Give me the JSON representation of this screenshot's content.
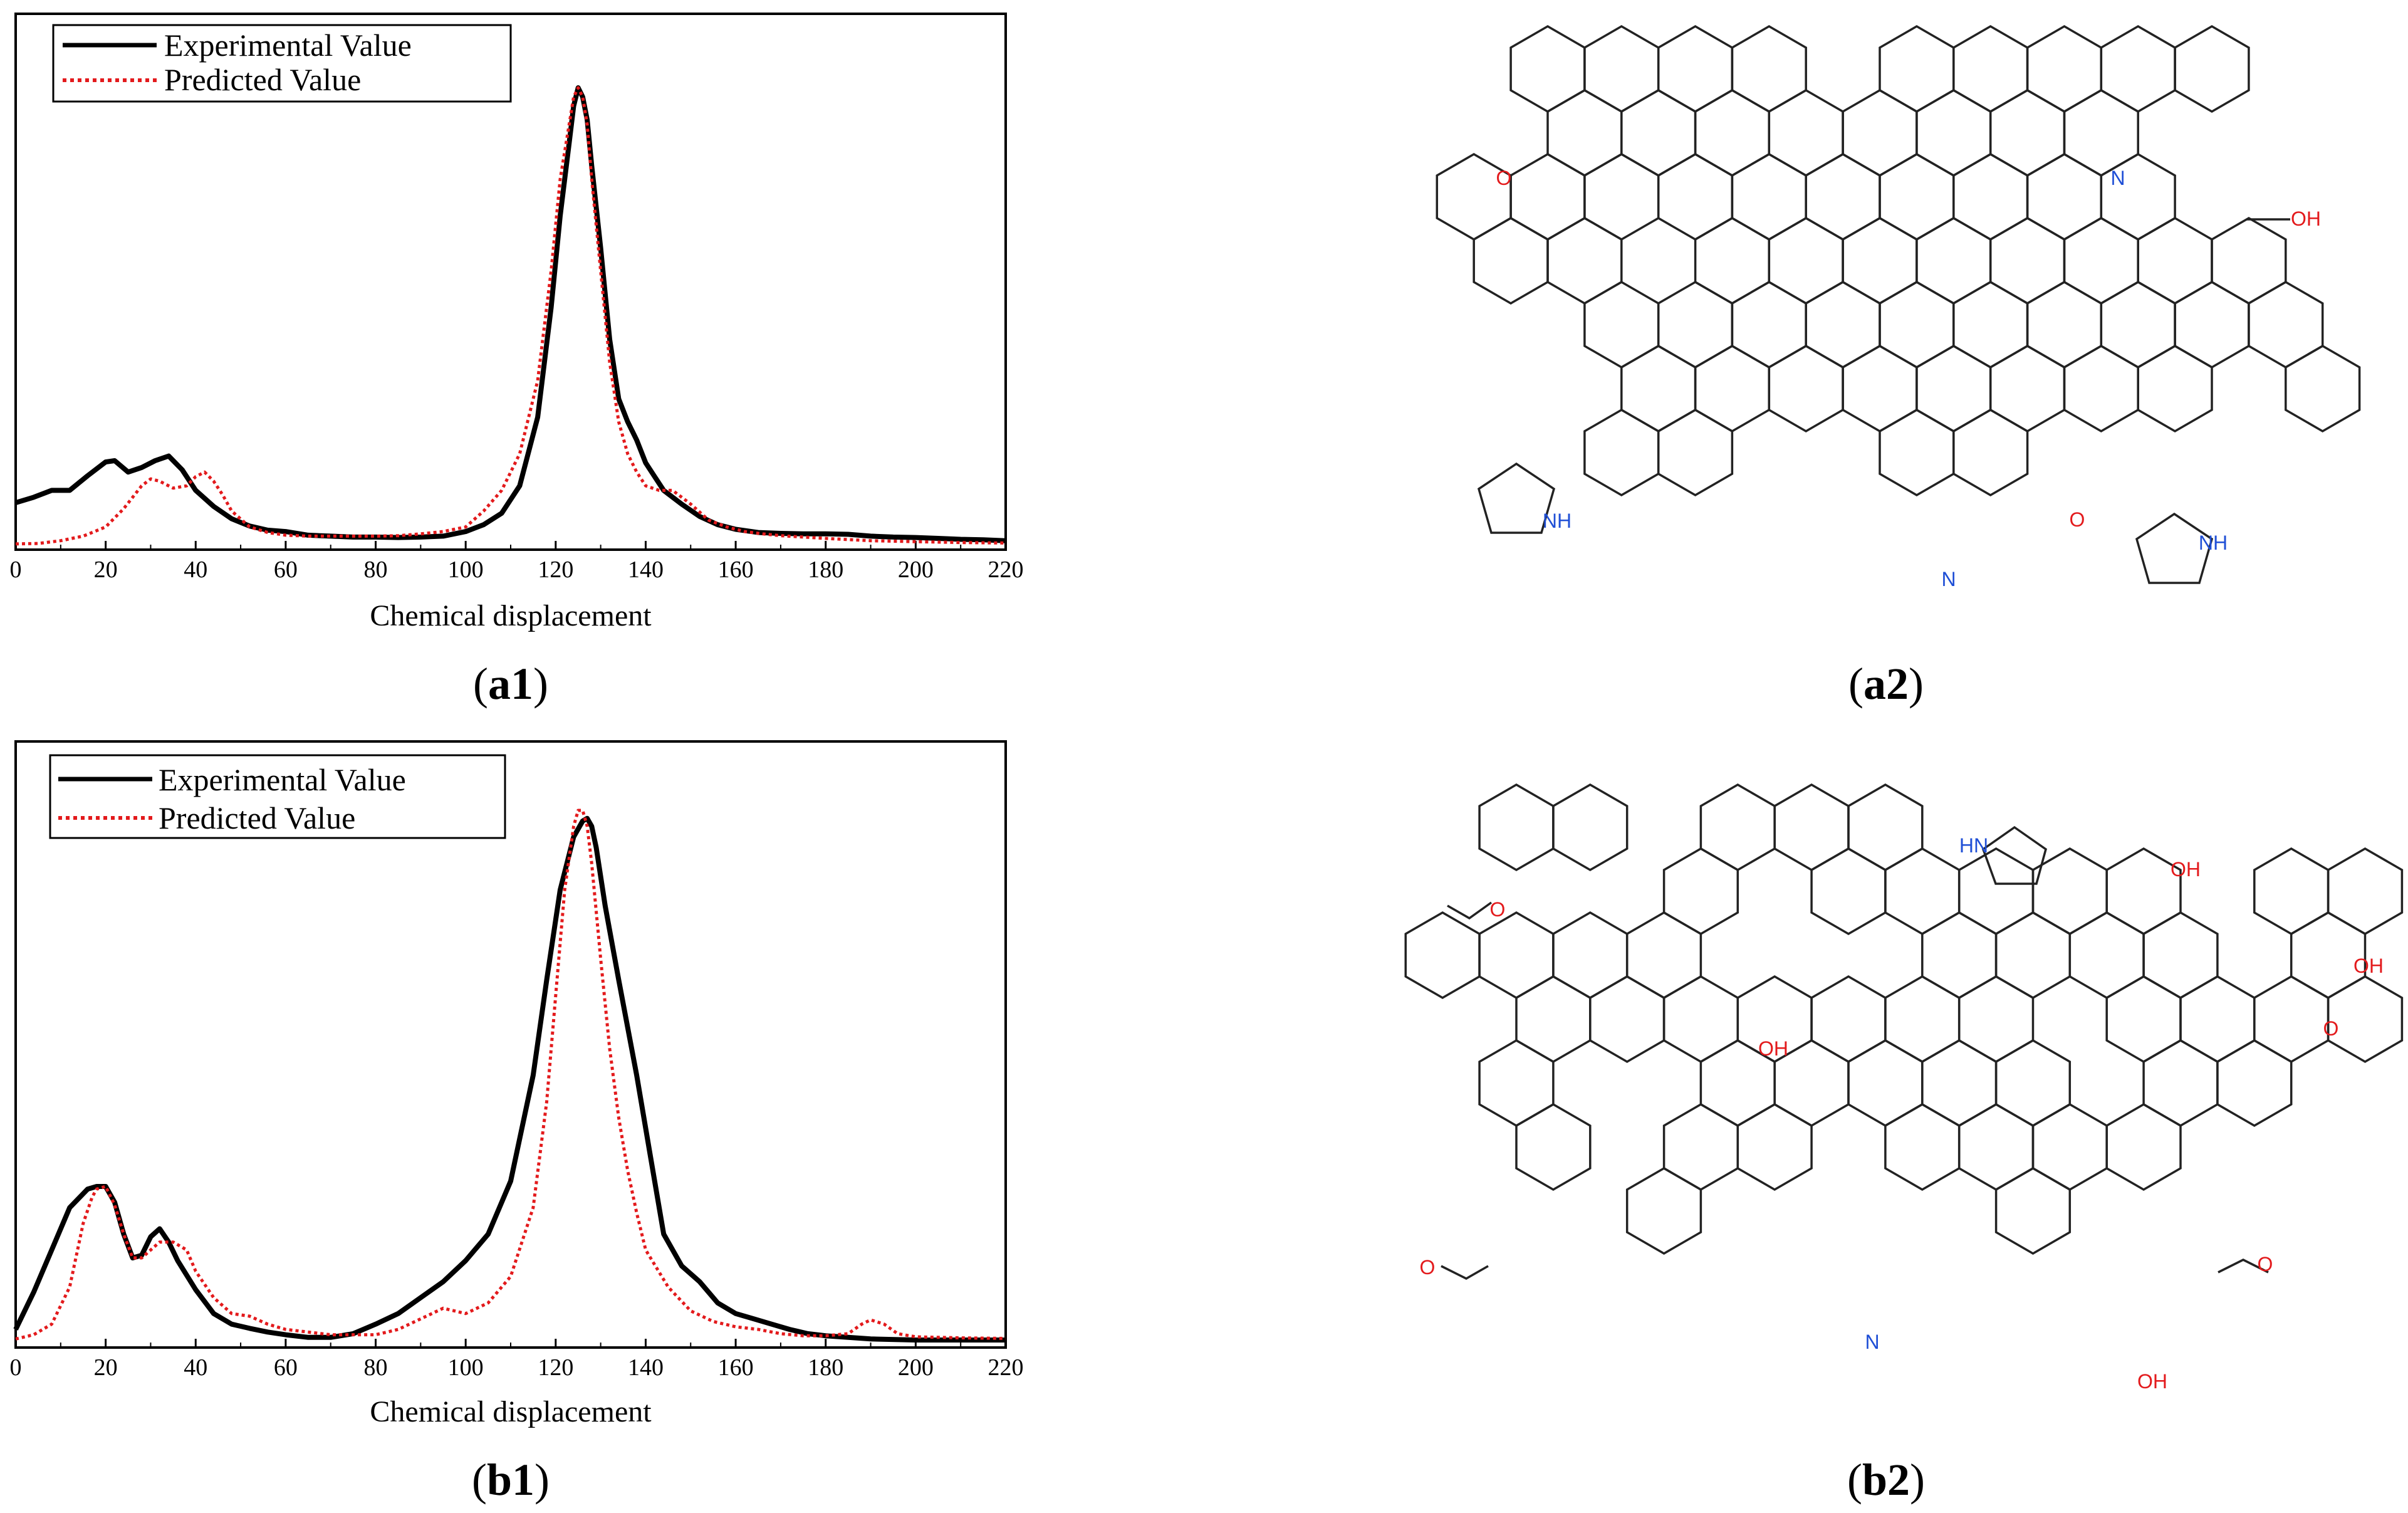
{
  "chart_data": [
    {
      "type": "line",
      "panel_label_bold": "a1",
      "panel_label_open": "(",
      "panel_label_close": ")",
      "xlabel": "Chemical displacement",
      "ylabel": "",
      "xlim": [
        0,
        220
      ],
      "ylim": [
        0,
        1
      ],
      "xticks": [
        0,
        20,
        40,
        60,
        80,
        100,
        120,
        140,
        160,
        180,
        200,
        220
      ],
      "grid": false,
      "legend_position": "top-left",
      "series": [
        {
          "name": "Experimental Value",
          "color": "#000000",
          "style": "solid",
          "x": [
            0,
            4,
            8,
            12,
            16,
            20,
            22,
            25,
            28,
            31,
            34,
            37,
            40,
            44,
            48,
            52,
            56,
            60,
            65,
            70,
            75,
            80,
            85,
            90,
            95,
            100,
            104,
            108,
            112,
            116,
            119,
            121,
            123,
            124,
            125,
            126,
            127,
            128,
            130,
            132,
            134,
            136,
            138,
            140,
            142,
            144,
            148,
            152,
            156,
            160,
            165,
            170,
            175,
            180,
            185,
            190,
            195,
            200,
            205,
            210,
            215,
            220
          ],
          "y": [
            0.093,
            0.105,
            0.12,
            0.12,
            0.152,
            0.182,
            0.185,
            0.16,
            0.17,
            0.185,
            0.195,
            0.165,
            0.12,
            0.085,
            0.058,
            0.042,
            0.033,
            0.03,
            0.022,
            0.02,
            0.018,
            0.018,
            0.017,
            0.018,
            0.02,
            0.03,
            0.045,
            0.07,
            0.13,
            0.28,
            0.52,
            0.72,
            0.88,
            0.96,
            1.0,
            0.98,
            0.93,
            0.83,
            0.65,
            0.45,
            0.32,
            0.27,
            0.23,
            0.18,
            0.15,
            0.12,
            0.09,
            0.063,
            0.045,
            0.035,
            0.028,
            0.026,
            0.025,
            0.025,
            0.024,
            0.02,
            0.018,
            0.017,
            0.015,
            0.013,
            0.012,
            0.01
          ]
        },
        {
          "name": "Predicted Value",
          "color": "#e31a1c",
          "style": "dotted",
          "x": [
            0,
            5,
            10,
            15,
            20,
            24,
            28,
            30,
            32,
            35,
            38,
            40,
            42,
            44,
            46,
            48,
            52,
            56,
            60,
            65,
            70,
            75,
            80,
            85,
            90,
            95,
            100,
            104,
            108,
            112,
            116,
            119,
            121,
            123,
            124,
            125,
            126,
            127,
            128,
            130,
            132,
            134,
            136,
            138,
            140,
            143,
            146,
            150,
            154,
            158,
            162,
            166,
            170,
            180,
            190,
            200,
            210,
            220
          ],
          "y": [
            0.003,
            0.004,
            0.01,
            0.02,
            0.04,
            0.08,
            0.13,
            0.145,
            0.14,
            0.125,
            0.13,
            0.15,
            0.16,
            0.14,
            0.11,
            0.075,
            0.04,
            0.028,
            0.022,
            0.02,
            0.02,
            0.02,
            0.02,
            0.021,
            0.025,
            0.03,
            0.04,
            0.075,
            0.12,
            0.2,
            0.36,
            0.6,
            0.8,
            0.92,
            0.98,
            1.0,
            0.98,
            0.92,
            0.8,
            0.6,
            0.4,
            0.27,
            0.2,
            0.16,
            0.13,
            0.12,
            0.12,
            0.09,
            0.055,
            0.04,
            0.03,
            0.025,
            0.021,
            0.015,
            0.01,
            0.008,
            0.006,
            0.005
          ]
        }
      ]
    },
    {
      "type": "line",
      "panel_label_bold": "b1",
      "panel_label_open": "(",
      "panel_label_close": ")",
      "xlabel": "Chemical displacement",
      "ylabel": "",
      "xlim": [
        0,
        220
      ],
      "ylim": [
        0,
        1
      ],
      "xticks": [
        0,
        20,
        40,
        60,
        80,
        100,
        120,
        140,
        160,
        180,
        200,
        220
      ],
      "grid": false,
      "legend_position": "top-left",
      "series": [
        {
          "name": "Experimental Value",
          "color": "#000000",
          "style": "solid",
          "x": [
            0,
            4,
            8,
            12,
            16,
            18,
            20,
            22,
            24,
            26,
            28,
            30,
            32,
            34,
            36,
            40,
            44,
            48,
            52,
            56,
            60,
            65,
            70,
            75,
            80,
            85,
            90,
            95,
            100,
            105,
            110,
            115,
            118,
            121,
            124,
            126,
            127,
            128,
            129,
            131,
            134,
            138,
            141,
            144,
            148,
            152,
            156,
            160,
            164,
            168,
            172,
            176,
            180,
            185,
            190,
            200,
            210,
            220
          ],
          "y": [
            0.02,
            0.09,
            0.17,
            0.25,
            0.285,
            0.29,
            0.29,
            0.26,
            0.2,
            0.155,
            0.16,
            0.195,
            0.21,
            0.185,
            0.15,
            0.095,
            0.05,
            0.03,
            0.022,
            0.015,
            0.01,
            0.005,
            0.005,
            0.012,
            0.03,
            0.05,
            0.08,
            0.11,
            0.15,
            0.2,
            0.3,
            0.5,
            0.68,
            0.85,
            0.95,
            0.98,
            0.985,
            0.97,
            0.93,
            0.82,
            0.68,
            0.5,
            0.35,
            0.2,
            0.14,
            0.11,
            0.07,
            0.05,
            0.04,
            0.03,
            0.02,
            0.012,
            0.008,
            0.005,
            0.002,
            0,
            0,
            0
          ]
        },
        {
          "name": "Predicted Value",
          "color": "#e31a1c",
          "style": "dotted",
          "x": [
            0,
            4,
            8,
            12,
            15,
            17,
            18,
            20,
            22,
            24,
            26,
            28,
            30,
            32,
            35,
            38,
            40,
            44,
            48,
            52,
            56,
            60,
            65,
            70,
            75,
            80,
            85,
            90,
            95,
            100,
            105,
            110,
            115,
            118,
            120,
            122,
            124,
            125,
            126,
            127,
            128,
            130,
            132,
            134,
            136,
            138,
            140,
            145,
            150,
            155,
            160,
            165,
            170,
            175,
            180,
            185,
            188,
            190,
            193,
            196,
            200,
            210,
            220
          ],
          "y": [
            0.002,
            0.01,
            0.03,
            0.1,
            0.22,
            0.27,
            0.285,
            0.29,
            0.255,
            0.2,
            0.155,
            0.155,
            0.17,
            0.185,
            0.185,
            0.17,
            0.13,
            0.08,
            0.05,
            0.045,
            0.03,
            0.02,
            0.015,
            0.01,
            0.01,
            0.01,
            0.02,
            0.04,
            0.06,
            0.05,
            0.07,
            0.12,
            0.25,
            0.45,
            0.65,
            0.85,
            0.97,
            1.0,
            1.0,
            0.97,
            0.9,
            0.72,
            0.55,
            0.42,
            0.32,
            0.24,
            0.17,
            0.1,
            0.055,
            0.035,
            0.025,
            0.02,
            0.012,
            0.008,
            0.008,
            0.012,
            0.03,
            0.038,
            0.03,
            0.012,
            0.006,
            0.004,
            0.003
          ]
        }
      ]
    }
  ],
  "diagrams": [
    {
      "panel_label_bold": "a2",
      "panel_label_open": "(",
      "panel_label_close": ")",
      "atom_labels": [
        "O",
        "N",
        "OH",
        "NH",
        "N",
        "O",
        "NH"
      ]
    },
    {
      "panel_label_bold": "b2",
      "panel_label_open": "(",
      "panel_label_close": ")",
      "atom_labels": [
        "O",
        "HN",
        "OH",
        "OH",
        "OH",
        "O",
        "O",
        "N",
        "O",
        "OH"
      ]
    }
  ],
  "colors": {
    "experimental": "#000000",
    "predicted": "#e31a1c",
    "oxygen": "#e31a1c",
    "nitrogen": "#1f4fd6"
  }
}
